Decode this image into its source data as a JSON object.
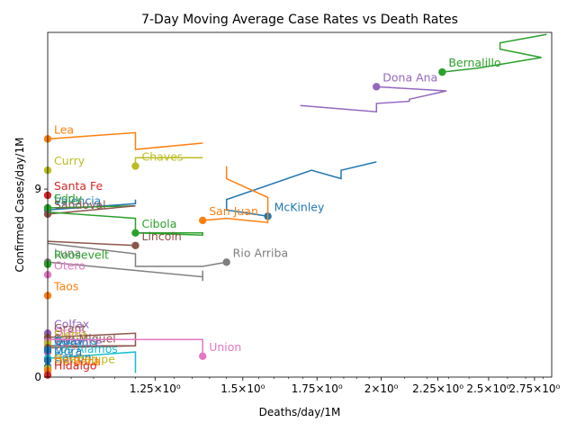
{
  "chart_data": {
    "type": "line",
    "title": "7-Day Moving Average Case Rates vs Death Rates",
    "xlabel": "Deaths/day/1M",
    "ylabel": "Confirmed Cases/day/1M",
    "x_scale": "log",
    "y_scale": "linear",
    "xlim": [
      1.0,
      2.85
    ],
    "ylim": [
      0,
      16.5
    ],
    "x_ticks": [
      {
        "value": 1.25,
        "label": "1.25×10⁰"
      },
      {
        "value": 1.5,
        "label": "1.5×10⁰"
      },
      {
        "value": 1.75,
        "label": "1.75×10⁰"
      },
      {
        "value": 2.0,
        "label": "2×10⁰"
      },
      {
        "value": 2.25,
        "label": "2.25×10⁰"
      },
      {
        "value": 2.5,
        "label": "2.5×10⁰"
      },
      {
        "value": 2.75,
        "label": "2.75×10⁰"
      }
    ],
    "y_ticks": [
      {
        "value": 0,
        "label": "0"
      },
      {
        "value": 9,
        "label": "9"
      }
    ],
    "grid": false,
    "legend": "none",
    "series": [
      {
        "name": "Bernalillo",
        "color": "#2ca02c",
        "end": [
          2.27,
          14.6
        ],
        "x": [
          2.27,
          2.45,
          2.79,
          2.56,
          2.56,
          2.82
        ],
        "y": [
          14.6,
          14.8,
          15.3,
          15.7,
          16.0,
          16.4
        ]
      },
      {
        "name": "Dona Ana",
        "color": "#9467bd",
        "end": [
          1.98,
          13.9
        ],
        "x": [
          1.98,
          2.29,
          2.12,
          2.12,
          1.98,
          1.98,
          1.69
        ],
        "y": [
          13.9,
          13.7,
          13.3,
          13.2,
          13.1,
          12.7,
          13.0
        ]
      },
      {
        "name": "Lea",
        "color": "#ff7f0e",
        "end": [
          1.0,
          11.4
        ],
        "x": [
          1.0,
          1.2,
          1.2,
          1.38
        ],
        "y": [
          11.4,
          11.7,
          10.9,
          11.2
        ]
      },
      {
        "name": "Curry",
        "color": "#bcbd22",
        "end": [
          1.0,
          9.9
        ],
        "x": [
          1.0
        ],
        "y": [
          9.9
        ]
      },
      {
        "name": "Chaves",
        "color": "#bcbd22",
        "end": [
          1.2,
          10.1
        ],
        "x": [
          1.2,
          1.2,
          1.38
        ],
        "y": [
          10.1,
          10.5,
          10.5
        ]
      },
      {
        "name": "McKinley",
        "color": "#1f77b4",
        "end": [
          1.58,
          7.7
        ],
        "x": [
          1.58,
          1.45,
          1.45,
          1.73,
          1.84,
          1.84,
          1.98
        ],
        "y": [
          7.7,
          8.0,
          8.5,
          9.9,
          9.5,
          9.9,
          10.3
        ]
      },
      {
        "name": "San Juan",
        "color": "#ff7f0e",
        "end": [
          1.38,
          7.5
        ],
        "x": [
          1.38,
          1.45,
          1.58,
          1.58,
          1.45,
          1.45
        ],
        "y": [
          7.5,
          7.6,
          7.4,
          8.6,
          9.5,
          10.1
        ]
      },
      {
        "name": "Santa Fe",
        "color": "#d62728",
        "end": [
          1.0,
          8.7
        ],
        "x": [
          1.0
        ],
        "y": [
          8.7
        ]
      },
      {
        "name": "Valencia",
        "color": "#1f77b4",
        "end": [
          1.0,
          8.0
        ],
        "x": [
          1.0,
          1.2,
          1.2
        ],
        "y": [
          8.0,
          8.3,
          8.5
        ]
      },
      {
        "name": "Eddy",
        "color": "#2ca02c",
        "end": [
          1.0,
          8.1
        ],
        "x": [
          1.0,
          1.2
        ],
        "y": [
          8.1,
          8.2
        ]
      },
      {
        "name": "Sandoval",
        "color": "#8c564b",
        "end": [
          1.0,
          7.8
        ],
        "x": [
          1.0,
          1.2
        ],
        "y": [
          7.8,
          8.2
        ]
      },
      {
        "name": "Cibola",
        "color": "#2ca02c",
        "end": [
          1.2,
          6.9
        ],
        "x": [
          1.2,
          1.38,
          1.38,
          1.2,
          1.2,
          1.0
        ],
        "y": [
          6.9,
          6.8,
          6.9,
          6.9,
          7.6,
          7.9
        ]
      },
      {
        "name": "Lincoln",
        "color": "#8c564b",
        "end": [
          1.2,
          6.3
        ],
        "x": [
          1.2,
          1.0
        ],
        "y": [
          6.3,
          6.5
        ]
      },
      {
        "name": "Rio Arriba",
        "color": "#7f7f7f",
        "end": [
          1.45,
          5.5
        ],
        "x": [
          1.45,
          1.38,
          1.2,
          1.2,
          1.0
        ],
        "y": [
          5.5,
          5.3,
          5.3,
          5.9,
          6.4
        ]
      },
      {
        "name": "Luna",
        "color": "#7f7f7f",
        "end": [
          1.0,
          5.5
        ],
        "x": [
          1.0,
          1.38,
          1.38,
          1.38
        ],
        "y": [
          5.5,
          4.8,
          5.1,
          4.6
        ]
      },
      {
        "name": "Roosevelt",
        "color": "#2ca02c",
        "end": [
          1.0,
          5.4
        ],
        "x": [
          1.0
        ],
        "y": [
          5.4
        ]
      },
      {
        "name": "Otero",
        "color": "#e377c2",
        "end": [
          1.0,
          4.9
        ],
        "x": [
          1.0
        ],
        "y": [
          4.9
        ]
      },
      {
        "name": "Taos",
        "color": "#ff7f0e",
        "end": [
          1.0,
          3.9
        ],
        "x": [
          1.0
        ],
        "y": [
          3.9
        ]
      },
      {
        "name": "Colfax",
        "color": "#9467bd",
        "end": [
          1.0,
          2.1
        ],
        "x": [
          1.0
        ],
        "y": [
          2.1
        ]
      },
      {
        "name": "Grant",
        "color": "#8c564b",
        "end": [
          1.0,
          1.9
        ],
        "x": [
          1.0,
          1.2,
          1.2,
          1.0
        ],
        "y": [
          1.9,
          2.1,
          1.5,
          1.5
        ]
      },
      {
        "name": "Otero",
        "color": "#e377c2",
        "end": [
          1.0,
          1.7
        ],
        "x": [
          1.0
        ],
        "y": [
          1.7
        ]
      },
      {
        "name": "Sierra",
        "color": "#bcbd22",
        "end": [
          1.0,
          1.6
        ],
        "x": [
          1.0
        ],
        "y": [
          1.6
        ]
      },
      {
        "name": "San Miguel",
        "color": "#8c564b",
        "end": [
          1.0,
          1.4
        ],
        "x": [
          1.0,
          1.2
        ],
        "y": [
          1.4,
          1.5
        ]
      },
      {
        "name": "Socorro",
        "color": "#17becf",
        "end": [
          1.0,
          1.3
        ],
        "x": [
          1.0
        ],
        "y": [
          1.3
        ]
      },
      {
        "name": "Torrance",
        "color": "#9467bd",
        "end": [
          1.0,
          1.2
        ],
        "x": [
          1.0
        ],
        "y": [
          1.2
        ]
      },
      {
        "name": "Quay",
        "color": "#1f77b4",
        "end": [
          1.0,
          1.3
        ],
        "x": [
          1.0
        ],
        "y": [
          1.3
        ]
      },
      {
        "name": "Union",
        "color": "#e377c2",
        "end": [
          1.38,
          1.0
        ],
        "x": [
          1.38,
          1.38,
          1.0
        ],
        "y": [
          1.0,
          1.8,
          1.8
        ]
      },
      {
        "name": "Los Alamos",
        "color": "#17becf",
        "end": [
          1.0,
          0.9
        ],
        "x": [
          1.0,
          1.2,
          1.2
        ],
        "y": [
          0.9,
          1.2,
          0.2
        ]
      },
      {
        "name": "Mora",
        "color": "#1f77b4",
        "end": [
          1.0,
          0.8
        ],
        "x": [
          1.0
        ],
        "y": [
          0.8
        ]
      },
      {
        "name": "Catron",
        "color": "#1f77b4",
        "end": [
          1.0,
          0.5
        ],
        "x": [
          1.0
        ],
        "y": [
          0.5
        ]
      },
      {
        "name": "Harding",
        "color": "#ff7f0e",
        "end": [
          1.0,
          0.4
        ],
        "x": [
          1.0
        ],
        "y": [
          0.4
        ]
      },
      {
        "name": "Guadalupe",
        "color": "#bcbd22",
        "end": [
          1.0,
          0.4
        ],
        "x": [
          1.0
        ],
        "y": [
          0.4
        ]
      },
      {
        "name": "De Baca",
        "color": "#ff7f0e",
        "end": [
          1.0,
          0.3
        ],
        "x": [
          1.0
        ],
        "y": [
          0.3
        ]
      },
      {
        "name": "Hidalgo",
        "color": "#d62728",
        "end": [
          1.0,
          0.1
        ],
        "x": [
          1.0
        ],
        "y": [
          0.1
        ]
      }
    ]
  }
}
